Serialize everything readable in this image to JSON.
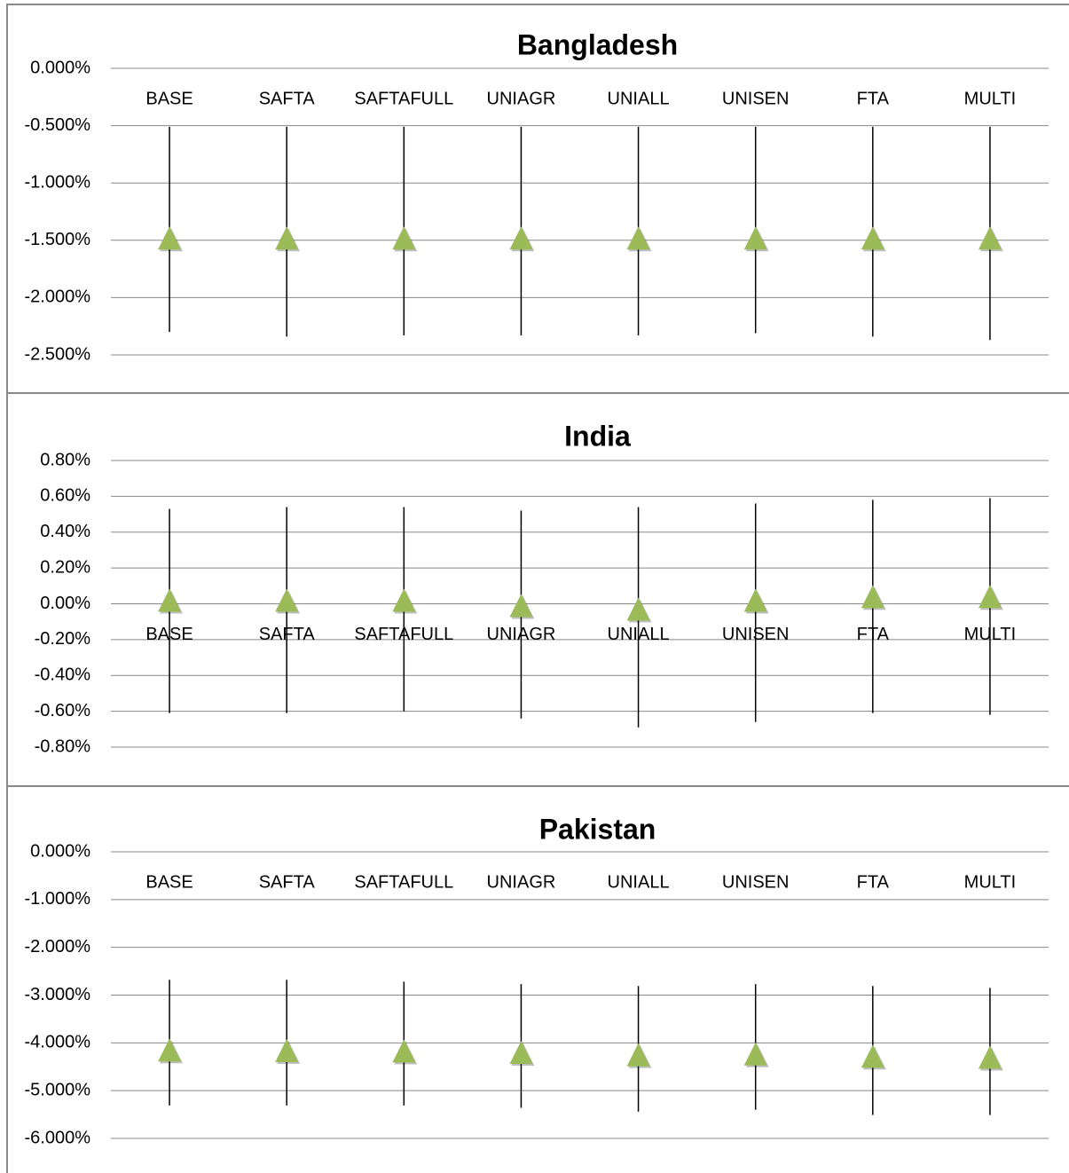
{
  "chart_data": [
    {
      "type": "errorbar",
      "title": "Bangladesh",
      "categories": [
        "BASE",
        "SAFTA",
        "SAFTAFULL",
        "UNIAGR",
        "UNIALL",
        "UNISEN",
        "FTA",
        "MULTI"
      ],
      "values": [
        -1.48,
        -1.48,
        -1.48,
        -1.48,
        -1.48,
        -1.48,
        -1.48,
        -1.48
      ],
      "upper": [
        -0.51,
        -0.51,
        -0.51,
        -0.51,
        -0.51,
        -0.51,
        -0.51,
        -0.51
      ],
      "lower": [
        -2.3,
        -2.34,
        -2.33,
        -2.33,
        -2.33,
        -2.31,
        -2.34,
        -2.37
      ],
      "color": "#9bbb59",
      "ylim": [
        -2.5,
        0
      ],
      "yticks": [
        {
          "value": 0,
          "label": "0.000%"
        },
        {
          "value": -0.5,
          "label": "-0.500%"
        },
        {
          "value": -1,
          "label": "-1.000%"
        },
        {
          "value": -1.5,
          "label": "-1.500%"
        },
        {
          "value": -2,
          "label": "-2.000%"
        },
        {
          "value": -2.5,
          "label": "-2.500%"
        }
      ],
      "grid": true
    },
    {
      "type": "errorbar",
      "title": "India",
      "categories": [
        "BASE",
        "SAFTA",
        "SAFTAFULL",
        "UNIAGR",
        "UNIALL",
        "UNISEN",
        "FTA",
        "MULTI"
      ],
      "values": [
        0.02,
        0.02,
        0.02,
        -0.01,
        -0.03,
        0.02,
        0.04,
        0.04
      ],
      "upper": [
        0.53,
        0.54,
        0.54,
        0.52,
        0.54,
        0.56,
        0.58,
        0.59
      ],
      "lower": [
        -0.61,
        -0.61,
        -0.6,
        -0.64,
        -0.69,
        -0.66,
        -0.61,
        -0.62
      ],
      "color": "#9bbb59",
      "ylim": [
        -0.8,
        0.8
      ],
      "yticks": [
        {
          "value": 0.8,
          "label": "0.80%"
        },
        {
          "value": 0.6,
          "label": "0.60%"
        },
        {
          "value": 0.4,
          "label": "0.40%"
        },
        {
          "value": 0.2,
          "label": "0.20%"
        },
        {
          "value": 0,
          "label": "0.00%"
        },
        {
          "value": -0.2,
          "label": "-0.20%"
        },
        {
          "value": -0.4,
          "label": "-0.40%"
        },
        {
          "value": -0.6,
          "label": "-0.60%"
        },
        {
          "value": -0.8,
          "label": "-0.80%"
        }
      ],
      "grid": true
    },
    {
      "type": "errorbar",
      "title": "Pakistan",
      "categories": [
        "BASE",
        "SAFTA",
        "SAFTAFULL",
        "UNIAGR",
        "UNIALL",
        "UNISEN",
        "FTA",
        "MULTI"
      ],
      "values": [
        -4.15,
        -4.16,
        -4.17,
        -4.2,
        -4.25,
        -4.23,
        -4.28,
        -4.3
      ],
      "upper": [
        -2.68,
        -2.68,
        -2.72,
        -2.77,
        -2.81,
        -2.77,
        -2.81,
        -2.85
      ],
      "lower": [
        -5.31,
        -5.31,
        -5.31,
        -5.36,
        -5.44,
        -5.4,
        -5.51,
        -5.51
      ],
      "color": "#9bbb59",
      "ylim": [
        -6,
        0
      ],
      "yticks": [
        {
          "value": 0,
          "label": "0.000%"
        },
        {
          "value": -1,
          "label": "-1.000%"
        },
        {
          "value": -2,
          "label": "-2.000%"
        },
        {
          "value": -3,
          "label": "-3.000%"
        },
        {
          "value": -4,
          "label": "-4.000%"
        },
        {
          "value": -5,
          "label": "-5.000%"
        },
        {
          "value": -6,
          "label": "-6.000%"
        }
      ],
      "grid": true
    }
  ]
}
